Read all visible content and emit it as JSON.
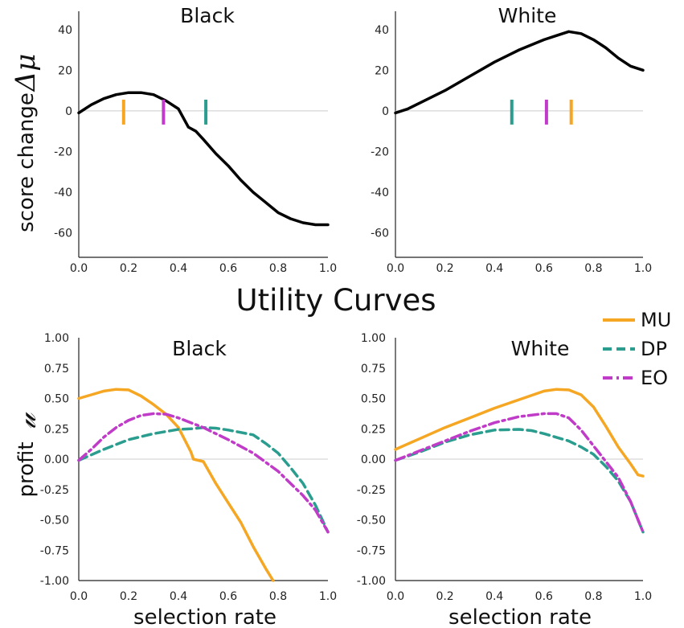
{
  "figure_title": "Utility Curves",
  "panel_titles": [
    "Black",
    "White",
    "Black",
    "White"
  ],
  "top_ylabel": "score change",
  "top_ylabel_symbol": "Δμ",
  "bottom_ylabel": "profit",
  "bottom_ylabel_symbol": "𝓊",
  "xlabel": "selection rate",
  "top_xticks": [
    "0.0",
    "0.2",
    "0.4",
    "0.6",
    "0.8",
    "1.0"
  ],
  "bottom_xticks": [
    "0.0",
    "0.2",
    "0.4",
    "0.6",
    "0.8",
    "1.0"
  ],
  "top_yticks": [
    "40",
    "20",
    "0",
    "-20",
    "-40",
    "-60"
  ],
  "bottom_yticks": [
    "1.00",
    "0.75",
    "0.50",
    "0.25",
    "0.00",
    "-0.25",
    "-0.50",
    "-0.75",
    "-1.00"
  ],
  "legend": [
    {
      "label": "MU",
      "color": "#F5A623",
      "dash": "solid"
    },
    {
      "label": "DP",
      "color": "#2A9D8F",
      "dash": "dashed"
    },
    {
      "label": "EO",
      "color": "#C03CC8",
      "dash": "dashdot"
    }
  ],
  "chart_data": [
    {
      "type": "line",
      "title": "Black",
      "xlabel": "",
      "ylabel": "score change Δμ",
      "xlim": [
        0,
        1
      ],
      "ylim": [
        -72,
        49
      ],
      "grid": false,
      "series": [
        {
          "values_xy": [
            [
              0.0,
              -1
            ],
            [
              0.05,
              3
            ],
            [
              0.1,
              6
            ],
            [
              0.15,
              8
            ],
            [
              0.2,
              9
            ],
            [
              0.25,
              9
            ],
            [
              0.3,
              8
            ],
            [
              0.35,
              5
            ],
            [
              0.4,
              1
            ],
            [
              0.44,
              -8
            ],
            [
              0.47,
              -10
            ],
            [
              0.5,
              -14
            ],
            [
              0.55,
              -21
            ],
            [
              0.6,
              -27
            ],
            [
              0.65,
              -34
            ],
            [
              0.7,
              -40
            ],
            [
              0.75,
              -45
            ],
            [
              0.8,
              -50
            ],
            [
              0.85,
              -53
            ],
            [
              0.9,
              -55
            ],
            [
              0.95,
              -56
            ],
            [
              1.0,
              -56
            ]
          ]
        }
      ],
      "markers": [
        {
          "method": "MU",
          "x": 0.18
        },
        {
          "method": "EO",
          "x": 0.34
        },
        {
          "method": "DP",
          "x": 0.51
        }
      ]
    },
    {
      "type": "line",
      "title": "White",
      "xlabel": "",
      "ylabel": "",
      "xlim": [
        0,
        1
      ],
      "ylim": [
        -72,
        49
      ],
      "grid": false,
      "series": [
        {
          "values_xy": [
            [
              0.0,
              -1
            ],
            [
              0.05,
              1
            ],
            [
              0.1,
              4
            ],
            [
              0.2,
              10
            ],
            [
              0.3,
              17
            ],
            [
              0.4,
              24
            ],
            [
              0.5,
              30
            ],
            [
              0.6,
              35
            ],
            [
              0.65,
              37
            ],
            [
              0.7,
              39
            ],
            [
              0.75,
              38
            ],
            [
              0.8,
              35
            ],
            [
              0.85,
              31
            ],
            [
              0.9,
              26
            ],
            [
              0.95,
              22
            ],
            [
              1.0,
              20
            ]
          ]
        }
      ],
      "markers": [
        {
          "method": "DP",
          "x": 0.47
        },
        {
          "method": "EO",
          "x": 0.61
        },
        {
          "method": "MU",
          "x": 0.71
        }
      ]
    },
    {
      "type": "line",
      "title": "Black",
      "xlabel": "selection rate",
      "ylabel": "profit 𝓊",
      "xlim": [
        0,
        1
      ],
      "ylim": [
        -1.0,
        1.0
      ],
      "grid": false,
      "series": [
        {
          "name": "MU",
          "values_xy": [
            [
              0.0,
              0.5
            ],
            [
              0.05,
              0.53
            ],
            [
              0.1,
              0.56
            ],
            [
              0.15,
              0.575
            ],
            [
              0.2,
              0.57
            ],
            [
              0.25,
              0.52
            ],
            [
              0.3,
              0.45
            ],
            [
              0.35,
              0.37
            ],
            [
              0.4,
              0.26
            ],
            [
              0.45,
              0.06
            ],
            [
              0.46,
              0.0
            ],
            [
              0.5,
              -0.02
            ],
            [
              0.55,
              -0.2
            ],
            [
              0.6,
              -0.36
            ],
            [
              0.65,
              -0.52
            ],
            [
              0.7,
              -0.72
            ],
            [
              0.75,
              -0.9
            ],
            [
              0.78,
              -1.0
            ]
          ]
        },
        {
          "name": "DP",
          "values_xy": [
            [
              0.0,
              -0.01
            ],
            [
              0.1,
              0.08
            ],
            [
              0.2,
              0.16
            ],
            [
              0.3,
              0.21
            ],
            [
              0.4,
              0.245
            ],
            [
              0.45,
              0.25
            ],
            [
              0.5,
              0.26
            ],
            [
              0.55,
              0.255
            ],
            [
              0.6,
              0.24
            ],
            [
              0.7,
              0.2
            ],
            [
              0.75,
              0.13
            ],
            [
              0.8,
              0.05
            ],
            [
              0.85,
              -0.07
            ],
            [
              0.9,
              -0.2
            ],
            [
              0.95,
              -0.38
            ],
            [
              1.0,
              -0.6
            ]
          ]
        },
        {
          "name": "EO",
          "values_xy": [
            [
              0.0,
              -0.01
            ],
            [
              0.05,
              0.08
            ],
            [
              0.1,
              0.18
            ],
            [
              0.15,
              0.26
            ],
            [
              0.2,
              0.32
            ],
            [
              0.25,
              0.36
            ],
            [
              0.3,
              0.375
            ],
            [
              0.35,
              0.37
            ],
            [
              0.4,
              0.34
            ],
            [
              0.45,
              0.3
            ],
            [
              0.5,
              0.26
            ],
            [
              0.55,
              0.21
            ],
            [
              0.6,
              0.16
            ],
            [
              0.7,
              0.05
            ],
            [
              0.8,
              -0.1
            ],
            [
              0.9,
              -0.3
            ],
            [
              0.95,
              -0.42
            ],
            [
              1.0,
              -0.6
            ]
          ]
        }
      ]
    },
    {
      "type": "line",
      "title": "White",
      "xlabel": "selection rate",
      "ylabel": "",
      "xlim": [
        0,
        1
      ],
      "ylim": [
        -1.0,
        1.0
      ],
      "grid": false,
      "series": [
        {
          "name": "MU",
          "values_xy": [
            [
              0.0,
              0.08
            ],
            [
              0.1,
              0.17
            ],
            [
              0.2,
              0.26
            ],
            [
              0.3,
              0.34
            ],
            [
              0.4,
              0.42
            ],
            [
              0.5,
              0.49
            ],
            [
              0.6,
              0.56
            ],
            [
              0.65,
              0.575
            ],
            [
              0.7,
              0.57
            ],
            [
              0.75,
              0.53
            ],
            [
              0.8,
              0.43
            ],
            [
              0.85,
              0.27
            ],
            [
              0.9,
              0.1
            ],
            [
              0.95,
              -0.04
            ],
            [
              0.98,
              -0.13
            ],
            [
              1.0,
              -0.14
            ]
          ]
        },
        {
          "name": "DP",
          "values_xy": [
            [
              0.0,
              -0.01
            ],
            [
              0.1,
              0.06
            ],
            [
              0.2,
              0.14
            ],
            [
              0.3,
              0.2
            ],
            [
              0.4,
              0.24
            ],
            [
              0.5,
              0.245
            ],
            [
              0.55,
              0.235
            ],
            [
              0.6,
              0.21
            ],
            [
              0.7,
              0.15
            ],
            [
              0.75,
              0.1
            ],
            [
              0.8,
              0.04
            ],
            [
              0.85,
              -0.06
            ],
            [
              0.9,
              -0.18
            ],
            [
              0.95,
              -0.35
            ],
            [
              1.0,
              -0.6
            ]
          ]
        },
        {
          "name": "EO",
          "values_xy": [
            [
              0.0,
              -0.01
            ],
            [
              0.1,
              0.07
            ],
            [
              0.2,
              0.15
            ],
            [
              0.3,
              0.23
            ],
            [
              0.4,
              0.3
            ],
            [
              0.5,
              0.35
            ],
            [
              0.6,
              0.375
            ],
            [
              0.65,
              0.375
            ],
            [
              0.7,
              0.34
            ],
            [
              0.75,
              0.24
            ],
            [
              0.8,
              0.11
            ],
            [
              0.85,
              -0.02
            ],
            [
              0.9,
              -0.15
            ],
            [
              0.95,
              -0.35
            ],
            [
              1.0,
              -0.6
            ]
          ]
        }
      ]
    }
  ]
}
